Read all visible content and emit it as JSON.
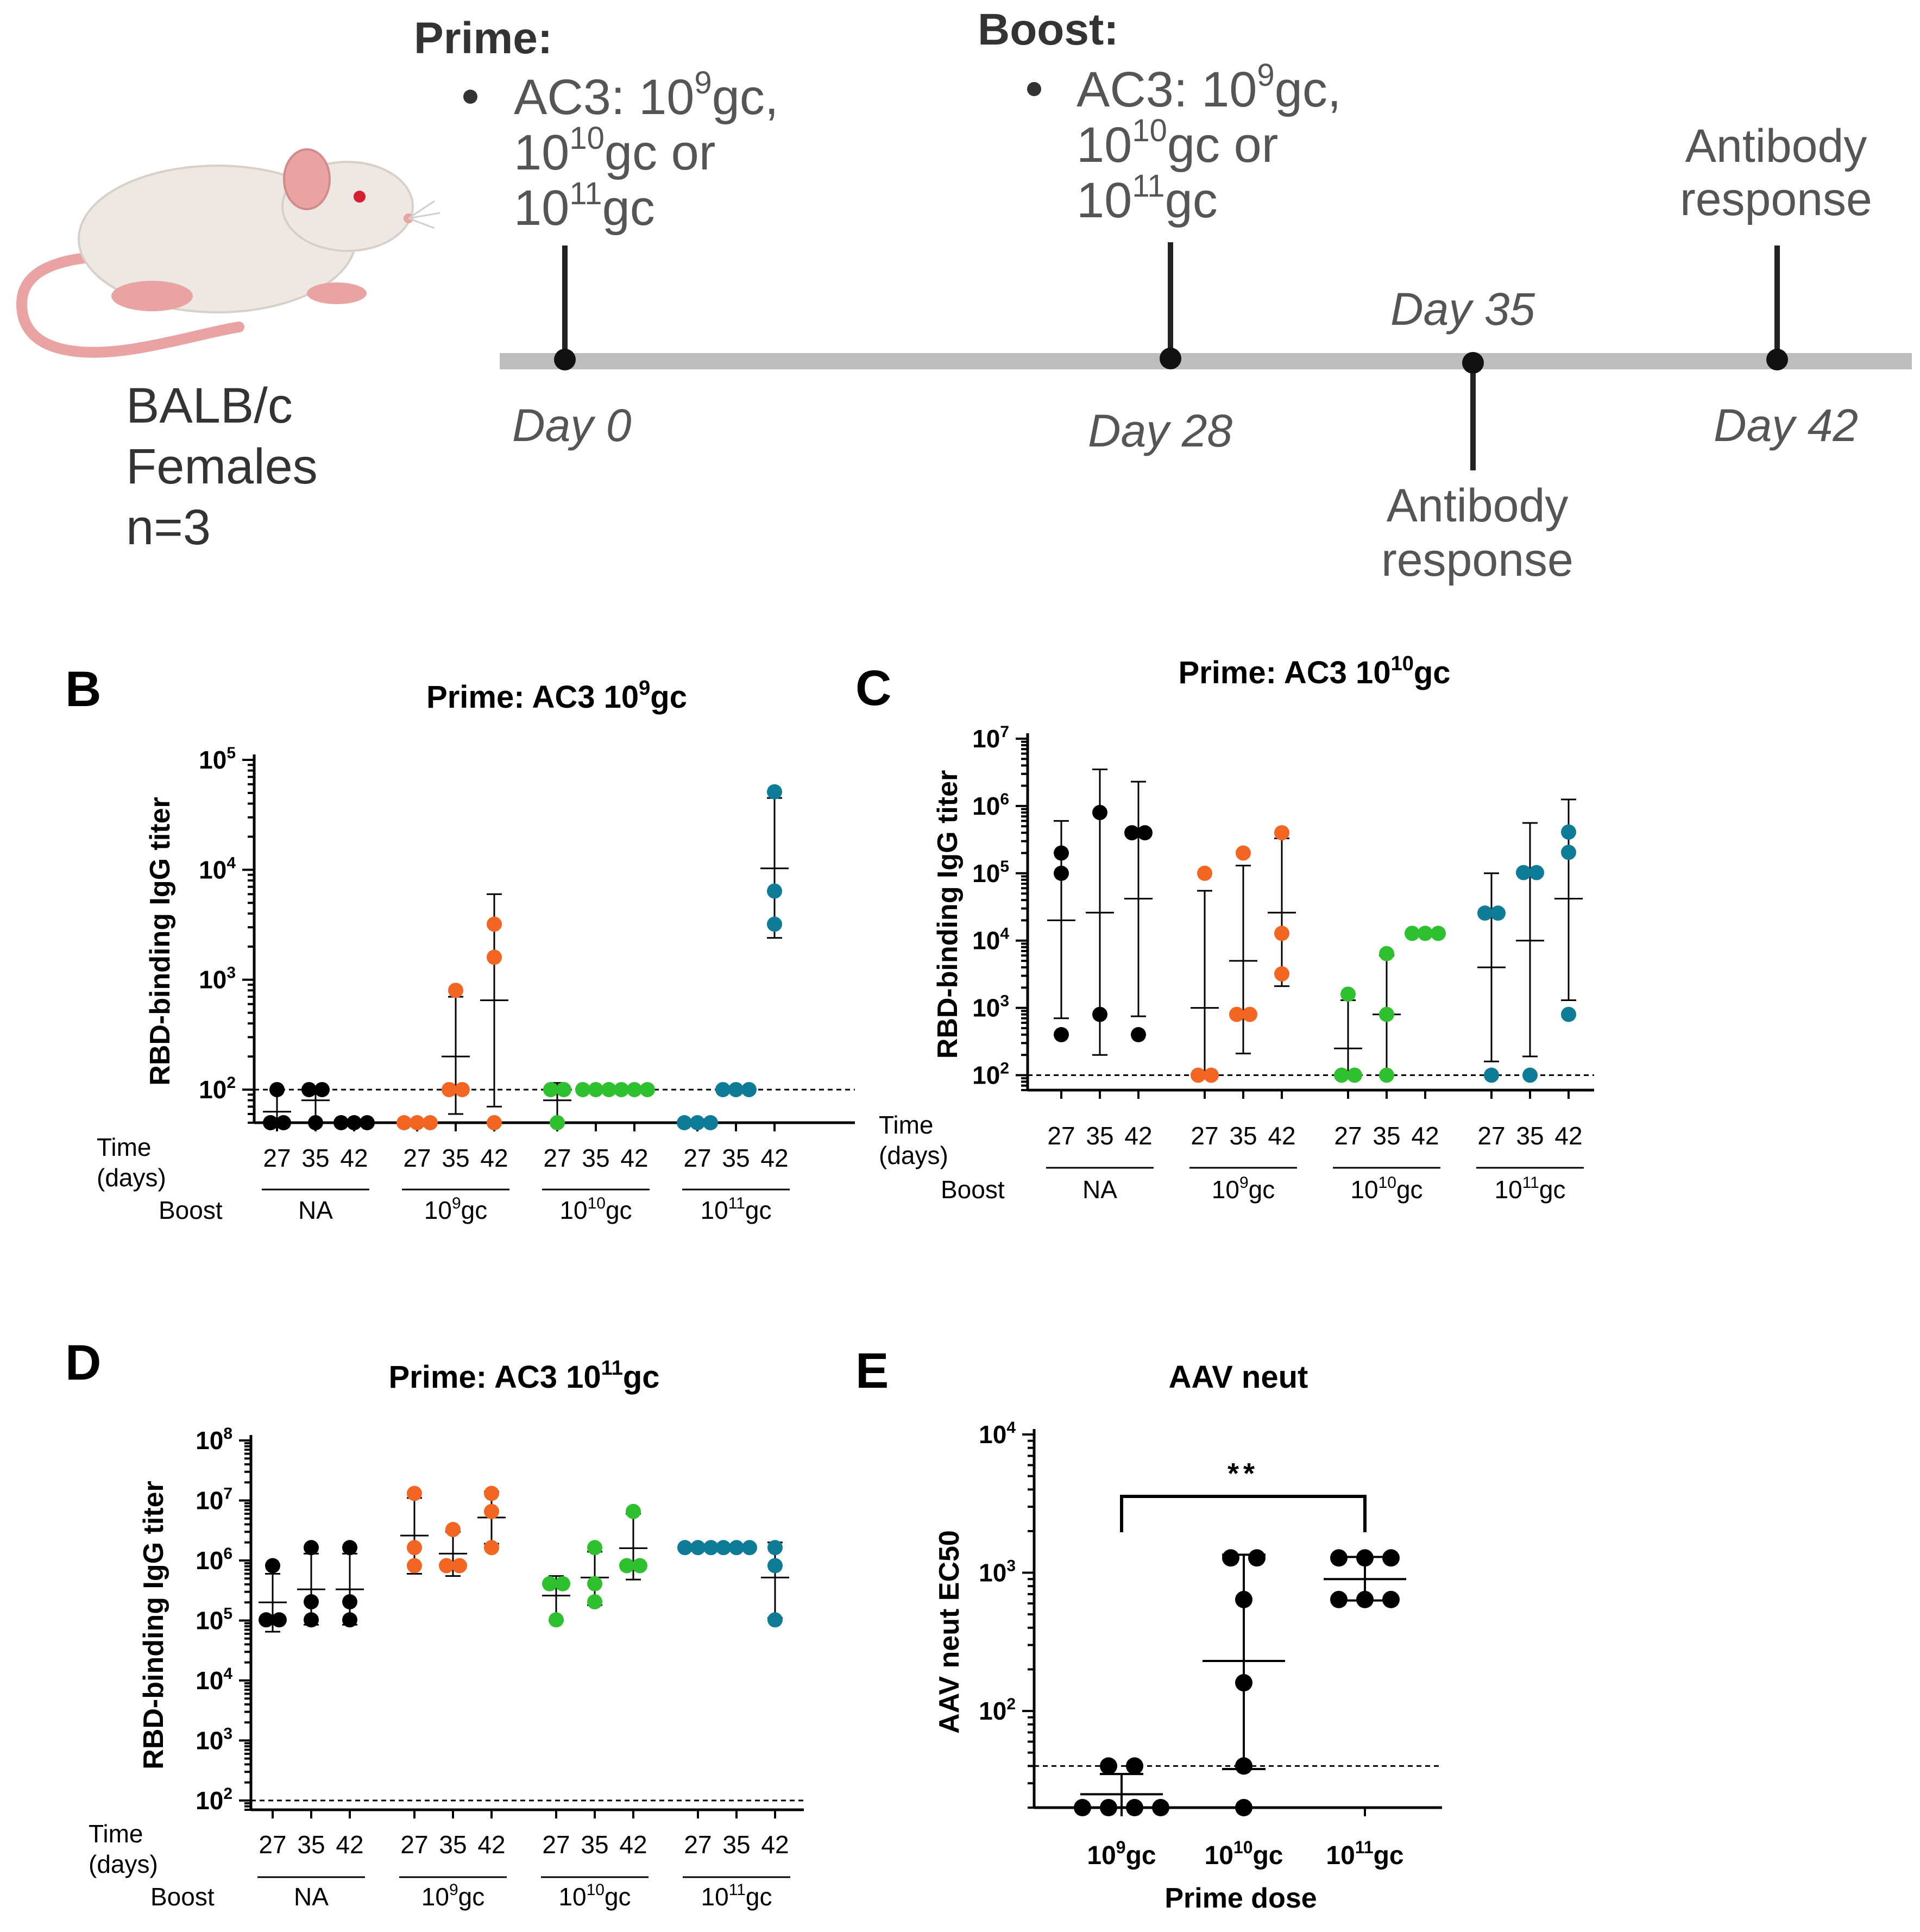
{
  "colors": {
    "naive": "#000000",
    "boost_1e9": "#F26522",
    "boost_1e10": "#2EC02E",
    "boost_1e11": "#0E7C97",
    "timeline": "#BDBDBD",
    "mouse_body": "#EDE8E3",
    "mouse_pink": "#E9A3A3"
  },
  "panelA": {
    "mouse_label": [
      "BALB/c",
      "Females",
      "n=3"
    ],
    "prime_title": "Prime:",
    "prime_lines": [
      "AC3: 10",
      "9",
      "gc,",
      "10",
      "10",
      "gc or",
      "10",
      "11",
      "gc"
    ],
    "boost_title": "Boost:",
    "boost_lines": [
      "AC3: 10",
      "9",
      "gc,",
      "10",
      "10",
      "gc or",
      "10",
      "11",
      "gc"
    ],
    "antibody_response": [
      "Antibody",
      "response"
    ],
    "days": [
      "Day 0",
      "Day 28",
      "Day 35",
      "Day 42"
    ]
  },
  "panel_letters": {
    "B": "B",
    "C": "C",
    "D": "D",
    "E": "E"
  },
  "common": {
    "ylabel": "RBD-binding IgG titer",
    "time_label": [
      "Time",
      "(days)"
    ],
    "boost_label": "Boost",
    "time_ticks": [
      "27",
      "35",
      "42"
    ],
    "groups": [
      {
        "base": "NA",
        "sup": ""
      },
      {
        "base": "10",
        "sup": "9",
        "tail": "gc"
      },
      {
        "base": "10",
        "sup": "10",
        "tail": "gc"
      },
      {
        "base": "10",
        "sup": "11",
        "tail": "gc"
      }
    ]
  },
  "chart_data": [
    {
      "id": "B",
      "type": "scatter",
      "title": "Prime: AC3 10^9gc",
      "title_base": "Prime: AC3 10",
      "title_sup": "9",
      "title_tail": "gc",
      "ylabel": "RBD-binding IgG titer",
      "yscale": "log",
      "ylim": [
        50,
        100000
      ],
      "yticks": [
        {
          "base": "10",
          "sup": "2",
          "v": 100
        },
        {
          "base": "10",
          "sup": "3",
          "v": 1000
        },
        {
          "base": "10",
          "sup": "4",
          "v": 10000
        },
        {
          "base": "10",
          "sup": "5",
          "v": 100000
        }
      ],
      "limit_of_detection": 100,
      "series": [
        {
          "name": "NA",
          "color_key": "naive",
          "points": [
            {
              "day": "27",
              "values": [
                50,
                50,
                100
              ],
              "mean": 63,
              "lo": 50,
              "hi": 100
            },
            {
              "day": "35",
              "values": [
                50,
                100,
                100
              ],
              "mean": 80,
              "lo": 50,
              "hi": 100
            },
            {
              "day": "42",
              "values": [
                50,
                50,
                50
              ],
              "mean": 50,
              "lo": 50,
              "hi": 50
            }
          ]
        },
        {
          "name": "10^9gc",
          "color_key": "boost_1e9",
          "points": [
            {
              "day": "27",
              "values": [
                50,
                50,
                50
              ],
              "mean": 50,
              "lo": 50,
              "hi": 50
            },
            {
              "day": "35",
              "values": [
                100,
                100,
                800
              ],
              "mean": 200,
              "lo": 60,
              "hi": 700
            },
            {
              "day": "42",
              "values": [
                50,
                1600,
                3200
              ],
              "mean": 650,
              "lo": 70,
              "hi": 6000
            }
          ]
        },
        {
          "name": "10^10gc",
          "color_key": "boost_1e10",
          "points": [
            {
              "day": "27",
              "values": [
                50,
                100,
                100
              ],
              "mean": 80,
              "lo": 50,
              "hi": 115
            },
            {
              "day": "35",
              "values": [
                100,
                100,
                100
              ],
              "mean": 100,
              "lo": 100,
              "hi": 100
            },
            {
              "day": "42",
              "values": [
                100,
                100,
                100
              ],
              "mean": 100,
              "lo": 100,
              "hi": 100
            }
          ]
        },
        {
          "name": "10^11gc",
          "color_key": "boost_1e11",
          "points": [
            {
              "day": "27",
              "values": [
                50,
                50,
                50
              ],
              "mean": 50,
              "lo": 50,
              "hi": 50
            },
            {
              "day": "35",
              "values": [
                100,
                100,
                100
              ],
              "mean": 100,
              "lo": 100,
              "hi": 100
            },
            {
              "day": "42",
              "values": [
                3200,
                6400,
                51200
              ],
              "mean": 10300,
              "lo": 2400,
              "hi": 45000
            }
          ]
        }
      ]
    },
    {
      "id": "C",
      "type": "scatter",
      "title": "Prime: AC3 10^10gc",
      "title_base": "Prime: AC3 10",
      "title_sup": "10",
      "title_tail": "gc",
      "ylabel": "RBD-binding IgG titer",
      "yscale": "log",
      "ylim": [
        60,
        10000000
      ],
      "yticks": [
        {
          "base": "10",
          "sup": "2",
          "v": 100
        },
        {
          "base": "10",
          "sup": "3",
          "v": 1000
        },
        {
          "base": "10",
          "sup": "4",
          "v": 10000
        },
        {
          "base": "10",
          "sup": "5",
          "v": 100000
        },
        {
          "base": "10",
          "sup": "6",
          "v": 1000000
        },
        {
          "base": "10",
          "sup": "7",
          "v": 10000000
        }
      ],
      "limit_of_detection": 100,
      "series": [
        {
          "name": "NA",
          "color_key": "naive",
          "points": [
            {
              "day": "27",
              "values": [
                400,
                100000,
                200000
              ],
              "mean": 20000,
              "lo": 700,
              "hi": 600000
            },
            {
              "day": "35",
              "values": [
                800,
                800000
              ],
              "mean": 26000,
              "lo": 200,
              "hi": 3500000
            },
            {
              "day": "42",
              "values": [
                400,
                400000,
                400000
              ],
              "mean": 42000,
              "lo": 750,
              "hi": 2300000
            }
          ]
        },
        {
          "name": "10^9gc",
          "color_key": "boost_1e9",
          "points": [
            {
              "day": "27",
              "values": [
                100,
                100,
                100000
              ],
              "mean": 1000,
              "lo": 100,
              "hi": 55000
            },
            {
              "day": "35",
              "values": [
                800,
                800,
                200000
              ],
              "mean": 5000,
              "lo": 210,
              "hi": 130000
            },
            {
              "day": "42",
              "values": [
                3200,
                12800,
                400000
              ],
              "mean": 26000,
              "lo": 2100,
              "hi": 330000
            }
          ]
        },
        {
          "name": "10^10gc",
          "color_key": "boost_1e10",
          "points": [
            {
              "day": "27",
              "values": [
                100,
                100,
                1600
              ],
              "mean": 250,
              "lo": 100,
              "hi": 1300
            },
            {
              "day": "35",
              "values": [
                100,
                800,
                6400
              ],
              "mean": 800,
              "lo": 100,
              "hi": 6000
            },
            {
              "day": "42",
              "values": [
                12800,
                12800,
                12800
              ],
              "mean": 12800,
              "lo": 12800,
              "hi": 12800
            }
          ]
        },
        {
          "name": "10^11gc",
          "color_key": "boost_1e11",
          "points": [
            {
              "day": "27",
              "values": [
                100,
                25600,
                25600
              ],
              "mean": 4000,
              "lo": 160,
              "hi": 100000
            },
            {
              "day": "35",
              "values": [
                100,
                102400,
                102400
              ],
              "mean": 10000,
              "lo": 190,
              "hi": 560000
            },
            {
              "day": "42",
              "values": [
                800,
                204800,
                409600
              ],
              "mean": 42000,
              "lo": 1300,
              "hi": 1250000
            }
          ]
        }
      ]
    },
    {
      "id": "D",
      "type": "scatter",
      "title": "Prime: AC3 10^11gc",
      "title_base": "Prime: AC3 10",
      "title_sup": "11",
      "title_tail": "gc",
      "ylabel": "RBD-binding IgG titer",
      "yscale": "log",
      "ylim": [
        70,
        100000000
      ],
      "yticks": [
        {
          "base": "10",
          "sup": "2",
          "v": 100
        },
        {
          "base": "10",
          "sup": "3",
          "v": 1000
        },
        {
          "base": "10",
          "sup": "4",
          "v": 10000
        },
        {
          "base": "10",
          "sup": "5",
          "v": 100000
        },
        {
          "base": "10",
          "sup": "6",
          "v": 1000000
        },
        {
          "base": "10",
          "sup": "7",
          "v": 10000000
        },
        {
          "base": "10",
          "sup": "8",
          "v": 100000000
        }
      ],
      "limit_of_detection": 100,
      "series": [
        {
          "name": "NA",
          "color_key": "naive",
          "points": [
            {
              "day": "27",
              "values": [
                102400,
                102400,
                819200
              ],
              "mean": 200000,
              "lo": 65000,
              "hi": 600000
            },
            {
              "day": "35",
              "values": [
                102400,
                204800,
                1638400
              ],
              "mean": 330000,
              "lo": 85000,
              "hi": 1300000
            },
            {
              "day": "42",
              "values": [
                102400,
                204800,
                1638400
              ],
              "mean": 330000,
              "lo": 85000,
              "hi": 1300000
            }
          ]
        },
        {
          "name": "10^9gc",
          "color_key": "boost_1e9",
          "points": [
            {
              "day": "27",
              "values": [
                819200,
                1638400,
                13107200
              ],
              "mean": 2600000,
              "lo": 600000,
              "hi": 11000000
            },
            {
              "day": "35",
              "values": [
                819200,
                819200,
                3276800
              ],
              "mean": 1300000,
              "lo": 550000,
              "hi": 3000000
            },
            {
              "day": "42",
              "values": [
                1638400,
                6553600,
                13107200
              ],
              "mean": 5200000,
              "lo": 1900000,
              "hi": 14000000
            }
          ]
        },
        {
          "name": "10^10gc",
          "color_key": "boost_1e10",
          "points": [
            {
              "day": "27",
              "values": [
                102400,
                409600,
                409600
              ],
              "mean": 260000,
              "lo": 100000,
              "hi": 550000
            },
            {
              "day": "35",
              "values": [
                204800,
                409600,
                1638400
              ],
              "mean": 520000,
              "lo": 180000,
              "hi": 1400000
            },
            {
              "day": "42",
              "values": [
                819200,
                819200,
                6553600
              ],
              "mean": 1600000,
              "lo": 480000,
              "hi": 6000000
            }
          ]
        },
        {
          "name": "10^11gc",
          "color_key": "boost_1e11",
          "points": [
            {
              "day": "27",
              "values": [
                1638400,
                1638400,
                1638400
              ],
              "mean": 1638400,
              "lo": 1638400,
              "hi": 1638400
            },
            {
              "day": "35",
              "values": [
                1638400,
                1638400,
                1638400
              ],
              "mean": 1638400,
              "lo": 1638400,
              "hi": 1638400
            },
            {
              "day": "42",
              "values": [
                102400,
                819200,
                1638400
              ],
              "mean": 520000,
              "lo": 110000,
              "hi": 2000000
            }
          ]
        }
      ]
    },
    {
      "id": "E",
      "type": "scatter",
      "title": "AAV neut",
      "xlabel": "Prime dose",
      "ylabel": "AAV neut EC50",
      "yscale": "log",
      "ylim": [
        20,
        10000
      ],
      "yticks": [
        {
          "base": "10",
          "sup": "2",
          "v": 100
        },
        {
          "base": "10",
          "sup": "3",
          "v": 1000
        },
        {
          "base": "10",
          "sup": "4",
          "v": 10000
        }
      ],
      "limit_of_detection": 40,
      "categories": [
        {
          "base": "10",
          "sup": "9",
          "tail": "gc"
        },
        {
          "base": "10",
          "sup": "10",
          "tail": "gc"
        },
        {
          "base": "10",
          "sup": "11",
          "tail": "gc"
        }
      ],
      "series": [
        {
          "name": "10^9gc",
          "color_key": "naive",
          "values": [
            20,
            20,
            20,
            20,
            40,
            40
          ],
          "mean": 25,
          "lo": 20,
          "hi": 35
        },
        {
          "name": "10^10gc",
          "color_key": "naive",
          "values": [
            20,
            40,
            160,
            640,
            1280,
            1280
          ],
          "mean": 230,
          "lo": 38,
          "hi": 1350
        },
        {
          "name": "10^11gc",
          "color_key": "naive",
          "values": [
            640,
            640,
            640,
            1280,
            1280,
            1280
          ],
          "mean": 900,
          "lo": 630,
          "hi": 1300
        }
      ],
      "significance": {
        "label": "**",
        "from": "10^9gc",
        "to": "10^11gc"
      }
    }
  ]
}
